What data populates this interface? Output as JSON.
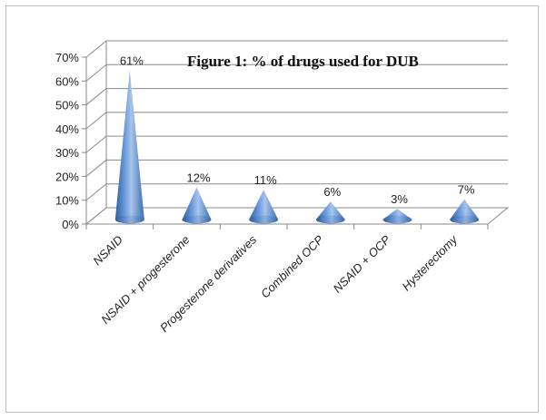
{
  "chart_data": {
    "type": "bar",
    "style": "3d-cone",
    "title": "Figure 1:  % of drugs used for DUB",
    "categories": [
      "NSAID",
      "NSAID + progesterone",
      "Progesterone derivatives",
      "Combined OCP",
      "NSAID + OCP",
      "Hysterectomy"
    ],
    "values": [
      61,
      12,
      11,
      6,
      3,
      7
    ],
    "data_labels": [
      "61%",
      "12%",
      "11%",
      "6%",
      "3%",
      "7%"
    ],
    "y_ticks": [
      "0%",
      "10%",
      "20%",
      "30%",
      "40%",
      "50%",
      "60%",
      "70%"
    ],
    "ylim": [
      0,
      70
    ],
    "grid": true,
    "colors": {
      "cone_light": "#a9c4ea",
      "cone_mid": "#5b8fd4",
      "cone_dark": "#2f5f9e"
    }
  }
}
